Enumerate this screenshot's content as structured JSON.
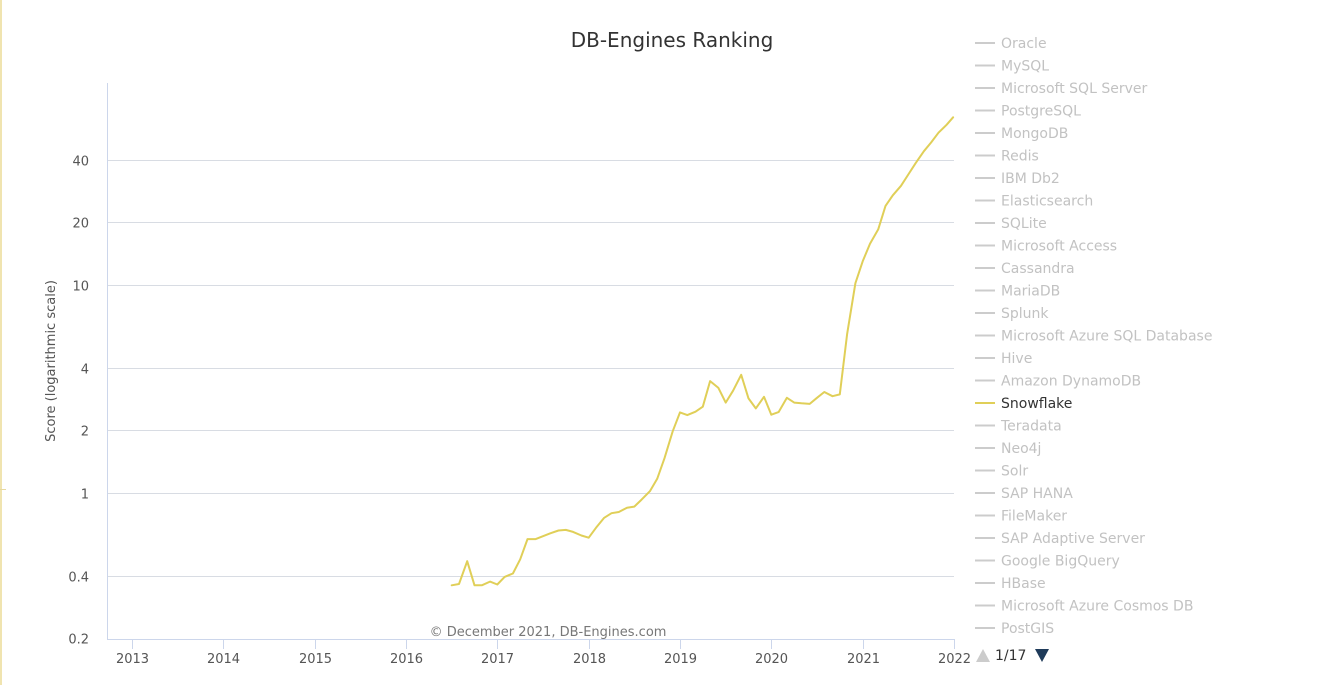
{
  "chart_data": {
    "type": "line",
    "title": "DB-Engines Ranking",
    "ylabel": "Score (logarithmic scale)",
    "yscale": "log",
    "ylim": [
      0.2,
      80
    ],
    "yticks": [
      0.2,
      0.4,
      1,
      2,
      4,
      10,
      20,
      40
    ],
    "ytick_labels": [
      "0.2",
      "0.4",
      "1",
      "2",
      "4",
      "10",
      "20",
      "40"
    ],
    "xlim": [
      2012.85,
      2022.0
    ],
    "xticks": [
      2013,
      2014,
      2015,
      2016,
      2017,
      2018,
      2019,
      2020,
      2021,
      2022
    ],
    "xtick_labels": [
      "2013",
      "2014",
      "2015",
      "2016",
      "2017",
      "2018",
      "2019",
      "2020",
      "2021",
      "2022"
    ],
    "grid": true,
    "credits": "© December 2021, DB-Engines.com",
    "legend": {
      "placement": "right",
      "items": [
        "Oracle",
        "MySQL",
        "Microsoft SQL Server",
        "PostgreSQL",
        "MongoDB",
        "Redis",
        "IBM Db2",
        "Elasticsearch",
        "SQLite",
        "Microsoft Access",
        "Cassandra",
        "MariaDB",
        "Splunk",
        "Microsoft Azure SQL Database",
        "Hive",
        "Amazon DynamoDB",
        "Snowflake",
        "Teradata",
        "Neo4j",
        "Solr",
        "SAP HANA",
        "FileMaker",
        "SAP Adaptive Server",
        "Google BigQuery",
        "HBase",
        "Microsoft Azure Cosmos DB",
        "PostGIS"
      ],
      "active_item": "Snowflake",
      "page_text": "1/17"
    },
    "series": [
      {
        "name": "Snowflake",
        "color": "#e0cf58",
        "points": [
          [
            2016.5,
            0.36
          ],
          [
            2016.58,
            0.365
          ],
          [
            2016.67,
            0.47
          ],
          [
            2016.75,
            0.36
          ],
          [
            2016.83,
            0.36
          ],
          [
            2016.92,
            0.375
          ],
          [
            2017.0,
            0.363
          ],
          [
            2017.08,
            0.395
          ],
          [
            2017.17,
            0.41
          ],
          [
            2017.25,
            0.48
          ],
          [
            2017.33,
            0.6
          ],
          [
            2017.42,
            0.6
          ],
          [
            2017.5,
            0.62
          ],
          [
            2017.58,
            0.64
          ],
          [
            2017.67,
            0.66
          ],
          [
            2017.75,
            0.665
          ],
          [
            2017.83,
            0.65
          ],
          [
            2017.92,
            0.625
          ],
          [
            2018.0,
            0.61
          ],
          [
            2018.08,
            0.68
          ],
          [
            2018.17,
            0.76
          ],
          [
            2018.25,
            0.8
          ],
          [
            2018.33,
            0.81
          ],
          [
            2018.42,
            0.85
          ],
          [
            2018.5,
            0.86
          ],
          [
            2018.58,
            0.93
          ],
          [
            2018.67,
            1.02
          ],
          [
            2018.75,
            1.17
          ],
          [
            2018.83,
            1.47
          ],
          [
            2018.92,
            1.98
          ],
          [
            2019.0,
            2.44
          ],
          [
            2019.08,
            2.37
          ],
          [
            2019.17,
            2.46
          ],
          [
            2019.25,
            2.6
          ],
          [
            2019.33,
            3.45
          ],
          [
            2019.42,
            3.2
          ],
          [
            2019.5,
            2.72
          ],
          [
            2019.58,
            3.1
          ],
          [
            2019.67,
            3.7
          ],
          [
            2019.75,
            2.85
          ],
          [
            2019.83,
            2.55
          ],
          [
            2019.92,
            2.9
          ],
          [
            2020.0,
            2.38
          ],
          [
            2020.08,
            2.45
          ],
          [
            2020.17,
            2.87
          ],
          [
            2020.25,
            2.72
          ],
          [
            2020.33,
            2.7
          ],
          [
            2020.42,
            2.68
          ],
          [
            2020.5,
            2.87
          ],
          [
            2020.58,
            3.06
          ],
          [
            2020.67,
            2.92
          ],
          [
            2020.75,
            2.98
          ],
          [
            2020.83,
            5.8
          ],
          [
            2020.92,
            10.2
          ],
          [
            2021.0,
            13.0
          ],
          [
            2021.08,
            15.8
          ],
          [
            2021.17,
            18.5
          ],
          [
            2021.25,
            24.0
          ],
          [
            2021.33,
            27.0
          ],
          [
            2021.42,
            30.0
          ],
          [
            2021.5,
            34.0
          ],
          [
            2021.58,
            38.5
          ],
          [
            2021.67,
            44.0
          ],
          [
            2021.75,
            48.5
          ],
          [
            2021.83,
            54.0
          ],
          [
            2021.92,
            59.0
          ],
          [
            2021.99,
            64.0
          ]
        ]
      }
    ]
  }
}
